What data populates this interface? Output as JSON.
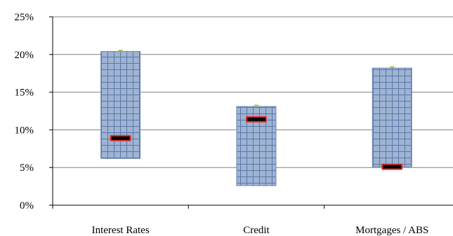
{
  "chart_data": {
    "type": "bar",
    "subtype": "floating-range-with-marker",
    "categories": [
      "Interest Rates",
      "Credit",
      "Mortgages / ABS"
    ],
    "series": [
      {
        "low": [
          6.2,
          2.6,
          5.1
        ]
      },
      {
        "high": [
          20.4,
          13.1,
          18.2
        ]
      },
      {
        "values": [
          8.9,
          11.4,
          5.1
        ]
      }
    ],
    "yticks": [
      "0%",
      "5%",
      "10%",
      "15%",
      "20%",
      "25%"
    ],
    "ylim": [
      0,
      25
    ],
    "grid": true,
    "legend": "none",
    "colors": {
      "range_fill": "#9fb3d3",
      "range_grid": "#4f6d9d",
      "marker_fill": "#000000",
      "marker_border": "#e0302a",
      "cap": "#a6c34a",
      "gridline": "#808080"
    }
  }
}
